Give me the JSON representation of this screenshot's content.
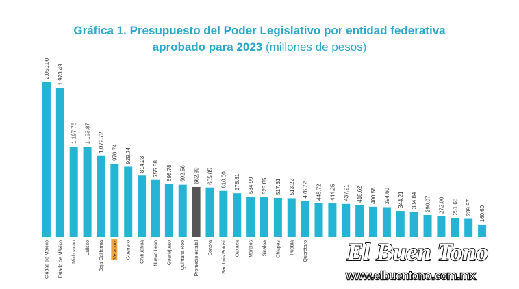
{
  "chart_data": {
    "type": "bar",
    "title": [
      "Gráfica 1. Presupuesto del Poder Legislativo por entidad federativa",
      "aprobado para 2023"
    ],
    "subtitle": "(millones de pesos)",
    "categories": [
      "Ciudad de México",
      "Estado de México",
      "Michoacán",
      "Jalisco",
      "Baja California",
      "Veracruz",
      "Guerrero",
      "Chihuahua",
      "Nuevo León",
      "Guanajuato",
      "Quintana Roo",
      "Promedio estatal",
      "Sonora",
      "San Luis Potosí",
      "Oaxaca",
      "Morelos",
      "Sinaloa",
      "Chiapas",
      "Puebla",
      "Querétaro",
      null,
      null,
      null,
      null,
      null,
      null,
      null,
      null,
      null,
      null,
      null,
      null,
      null
    ],
    "values": [
      2050.0,
      1973.49,
      1197.76,
      1193.87,
      1072.72,
      970.74,
      929.74,
      814.23,
      755.58,
      698.78,
      692.56,
      662.39,
      655.85,
      610.0,
      578.81,
      534.99,
      525.85,
      517.31,
      513.22,
      476.72,
      445.72,
      444.25,
      437.21,
      418.62,
      400.58,
      394.6,
      344.21,
      334.84,
      290.07,
      272.0,
      251.68,
      239.97,
      160.6
    ],
    "value_labels": [
      "2,050.00",
      "1,973.49",
      "1,197.76",
      "1,193.87",
      "1,072.72",
      "970.74",
      "929.74",
      "814.23",
      "755.58",
      "698.78",
      "692.56",
      "662.39",
      "655.85",
      "610.00",
      "578.81",
      "534.99",
      "525.85",
      "517.31",
      "513.22",
      "476.72",
      "445.72",
      "444.25",
      "437.21",
      "418.62",
      "400.58",
      "394.60",
      "344.21",
      "334.84",
      "290.07",
      "272.00",
      "251.68",
      "239.97",
      "160.60"
    ],
    "color": "#25b4d4",
    "colors": [
      "#25b4d4",
      "#25b4d4",
      "#25b4d4",
      "#25b4d4",
      "#25b4d4",
      "#25b4d4",
      "#25b4d4",
      "#25b4d4",
      "#25b4d4",
      "#25b4d4",
      "#25b4d4",
      "#555555",
      "#25b4d4",
      "#25b4d4",
      "#25b4d4",
      "#25b4d4",
      "#25b4d4",
      "#25b4d4",
      "#25b4d4",
      "#25b4d4",
      "#25b4d4",
      "#25b4d4",
      "#25b4d4",
      "#25b4d4",
      "#25b4d4",
      "#25b4d4",
      "#25b4d4",
      "#25b4d4",
      "#25b4d4",
      "#25b4d4",
      "#25b4d4",
      "#25b4d4",
      "#25b4d4"
    ],
    "label_highlight": {
      "index": 5,
      "color": "#f0a53a"
    }
  },
  "watermark": {
    "name": "El Buen Tono",
    "url": "www.elbuentono.com.mx"
  }
}
